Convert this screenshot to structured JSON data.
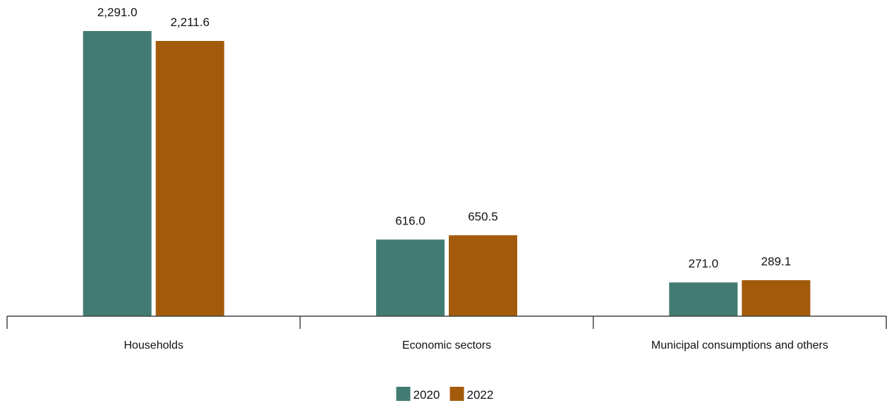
{
  "chart_data": {
    "type": "bar",
    "title": "",
    "xlabel": "",
    "ylabel": "",
    "categories": [
      "Households",
      "Economic sectors",
      "Municipal consumptions and others"
    ],
    "series": [
      {
        "name": "2020",
        "color": "#427b72",
        "values": [
          2291.0,
          616.0,
          271.0
        ],
        "labels": [
          "2,291.0",
          "616.0",
          "271.0"
        ]
      },
      {
        "name": "2022",
        "color": "#a35b0b",
        "values": [
          2211.6,
          650.5,
          289.1
        ],
        "labels": [
          "2,211.6",
          "650.5",
          "289.1"
        ]
      }
    ],
    "ylim": [
      0,
      2291.0
    ],
    "grid": false,
    "y_axis_visible": false,
    "data_labels": true,
    "legend_position": "bottom-center"
  }
}
